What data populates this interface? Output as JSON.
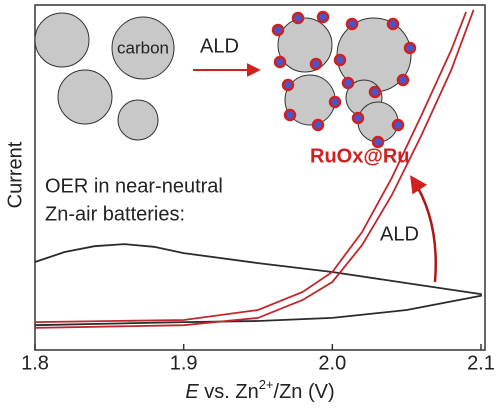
{
  "chart_data": {
    "type": "line",
    "ylabel": "Current",
    "xlabel": [
      "E",
      " vs. Zn",
      "2+",
      "/Zn (V)"
    ],
    "annotations": [
      "carbon",
      "ALD",
      "RuOx@Ru",
      "OER in near-neutral",
      "Zn-air batteries:",
      "ALD"
    ],
    "xlim": [
      1.8,
      2.1
    ],
    "xticks": [
      1.8,
      1.9,
      {
        "value": 2,
        "label": "2.0"
      },
      2.1
    ],
    "ylim": [
      0,
      100
    ],
    "series": [
      {
        "color": "#2b2b2b",
        "x": [
          1.8,
          1.82,
          1.84,
          1.86,
          1.88,
          1.9,
          1.95,
          2.0,
          2.05,
          2.1,
          2.1,
          2.05,
          2.0,
          1.95,
          1.9,
          1.8
        ],
        "values": [
          25.5,
          28.4,
          30.1,
          30.7,
          29.9,
          28.1,
          25.2,
          22.6,
          19.4,
          16.2,
          15.7,
          11.6,
          9.3,
          8.4,
          8.1,
          7.2
        ]
      },
      {
        "color": "#c0272d",
        "x": [
          1.8,
          1.9,
          1.95,
          1.98,
          2.0,
          2.02,
          2.04,
          2.06,
          2.08,
          2.095
        ],
        "values": [
          6.4,
          7.2,
          9.3,
          14.5,
          19.7,
          30.4,
          44.9,
          62.3,
          81.2,
          98.6
        ]
      },
      {
        "color": "#c0272d",
        "x": [
          1.8,
          1.9,
          1.95,
          1.98,
          2.0,
          2.02,
          2.04,
          2.06,
          2.08,
          2.09
        ],
        "values": [
          8.1,
          8.7,
          11.6,
          16.8,
          22.6,
          34.2,
          49.9,
          68.1,
          87.0,
          98.0
        ]
      }
    ]
  }
}
